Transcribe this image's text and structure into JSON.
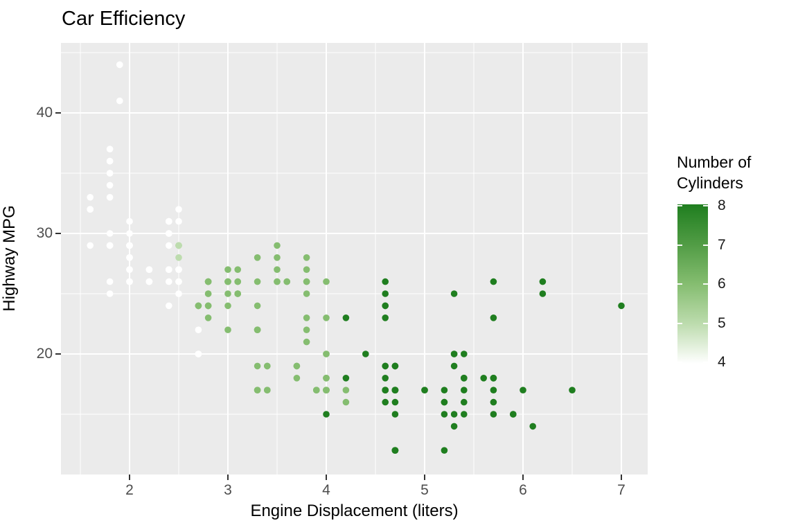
{
  "title": "Car Efficiency",
  "axes": {
    "x_label": "Engine Displacement (liters)",
    "y_label": "Highway MPG",
    "x_ticks": [
      2,
      3,
      4,
      5,
      6,
      7
    ],
    "y_ticks": [
      20,
      30,
      40
    ],
    "x_minor": [
      1.5,
      2.5,
      3.5,
      4.5,
      5.5,
      6.5
    ],
    "y_minor": [
      15,
      25,
      35,
      45
    ]
  },
  "legend": {
    "title_lines": [
      "Number of",
      "Cylinders"
    ],
    "ticks": [
      8,
      7,
      6,
      5,
      4
    ],
    "min_value": 4,
    "max_value": 8,
    "gradient_stops": [
      {
        "value": 4,
        "color": "#FFFFFF"
      },
      {
        "value": 5,
        "color": "#BDDCAE"
      },
      {
        "value": 6,
        "color": "#85BD70"
      },
      {
        "value": 7,
        "color": "#519C45"
      },
      {
        "value": 8,
        "color": "#1F7E1F"
      }
    ]
  },
  "colors": {
    "panel_bg": "#EBEBEB",
    "grid": "#FFFFFF",
    "axis_tick": "#333333",
    "tick_text": "#4D4D4D",
    "title_text": "#000000",
    "cyl_colors": {
      "4": "#FFFFFF",
      "5": "#BDDCAE",
      "6": "#85BD70",
      "7": "#519C45",
      "8": "#1F7E1F"
    }
  },
  "chart_data": {
    "type": "scatter",
    "title": "Car Efficiency",
    "xlabel": "Engine Displacement (liters)",
    "ylabel": "Highway MPG",
    "color_label": "Number of Cylinders",
    "xlim": [
      1.3,
      7.27
    ],
    "ylim": [
      10.4,
      45.6
    ],
    "x_ticks": [
      2,
      3,
      4,
      5,
      6,
      7
    ],
    "y_ticks": [
      20,
      30,
      40
    ],
    "legend_position": "right",
    "grid": true,
    "point_format": [
      "displacement_liters",
      "highway_mpg",
      "cylinders"
    ],
    "points": [
      [
        1.8,
        29,
        4
      ],
      [
        1.8,
        29,
        4
      ],
      [
        2,
        31,
        4
      ],
      [
        2,
        30,
        4
      ],
      [
        2.8,
        26,
        6
      ],
      [
        2.8,
        26,
        6
      ],
      [
        3.1,
        27,
        6
      ],
      [
        1.8,
        26,
        4
      ],
      [
        1.8,
        25,
        4
      ],
      [
        2,
        28,
        4
      ],
      [
        2,
        27,
        4
      ],
      [
        2.8,
        25,
        6
      ],
      [
        2.8,
        25,
        6
      ],
      [
        3.1,
        25,
        6
      ],
      [
        3.1,
        25,
        6
      ],
      [
        2.8,
        24,
        6
      ],
      [
        3.1,
        25,
        6
      ],
      [
        4.2,
        23,
        8
      ],
      [
        5.3,
        20,
        8
      ],
      [
        5.3,
        15,
        8
      ],
      [
        5.3,
        20,
        8
      ],
      [
        5.7,
        17,
        8
      ],
      [
        6,
        17,
        8
      ],
      [
        5.7,
        26,
        8
      ],
      [
        5.7,
        23,
        8
      ],
      [
        6.2,
        26,
        8
      ],
      [
        6.2,
        25,
        8
      ],
      [
        7,
        24,
        8
      ],
      [
        5.3,
        19,
        8
      ],
      [
        5.3,
        14,
        8
      ],
      [
        5.7,
        15,
        8
      ],
      [
        6.5,
        17,
        8
      ],
      [
        2.4,
        27,
        4
      ],
      [
        2.4,
        30,
        4
      ],
      [
        3.1,
        26,
        6
      ],
      [
        3.5,
        29,
        6
      ],
      [
        3.6,
        26,
        6
      ],
      [
        2.4,
        24,
        4
      ],
      [
        3,
        24,
        6
      ],
      [
        3.3,
        22,
        6
      ],
      [
        3.3,
        22,
        6
      ],
      [
        3.3,
        24,
        6
      ],
      [
        3.3,
        22,
        6
      ],
      [
        3.3,
        17,
        6
      ],
      [
        3.8,
        22,
        6
      ],
      [
        3.8,
        21,
        6
      ],
      [
        3.8,
        23,
        6
      ],
      [
        4,
        23,
        6
      ],
      [
        3.7,
        19,
        6
      ],
      [
        3.7,
        18,
        6
      ],
      [
        3.9,
        17,
        6
      ],
      [
        3.9,
        17,
        6
      ],
      [
        4.7,
        19,
        8
      ],
      [
        4.7,
        19,
        8
      ],
      [
        4.7,
        12,
        8
      ],
      [
        5.2,
        17,
        8
      ],
      [
        5.2,
        15,
        8
      ],
      [
        3.9,
        17,
        6
      ],
      [
        4.7,
        17,
        8
      ],
      [
        4.7,
        12,
        8
      ],
      [
        4.7,
        17,
        8
      ],
      [
        5.2,
        16,
        8
      ],
      [
        5.7,
        18,
        8
      ],
      [
        5.9,
        15,
        8
      ],
      [
        4.7,
        16,
        8
      ],
      [
        4.7,
        12,
        8
      ],
      [
        4.7,
        17,
        8
      ],
      [
        4.7,
        15,
        8
      ],
      [
        4.7,
        17,
        8
      ],
      [
        4.7,
        12,
        8
      ],
      [
        5.2,
        16,
        8
      ],
      [
        5.2,
        12,
        8
      ],
      [
        5.7,
        16,
        8
      ],
      [
        5.9,
        15,
        8
      ],
      [
        4.6,
        17,
        8
      ],
      [
        5.4,
        17,
        8
      ],
      [
        5.4,
        18,
        8
      ],
      [
        4,
        17,
        6
      ],
      [
        4,
        17,
        6
      ],
      [
        4,
        17,
        6
      ],
      [
        4,
        17,
        6
      ],
      [
        4.6,
        19,
        8
      ],
      [
        5,
        17,
        8
      ],
      [
        4.2,
        17,
        6
      ],
      [
        4.2,
        16,
        6
      ],
      [
        4.6,
        18,
        8
      ],
      [
        4.6,
        17,
        8
      ],
      [
        4.6,
        17,
        8
      ],
      [
        4.6,
        16,
        8
      ],
      [
        5.4,
        15,
        8
      ],
      [
        3.8,
        26,
        6
      ],
      [
        3.8,
        25,
        6
      ],
      [
        4,
        26,
        6
      ],
      [
        4.6,
        24,
        8
      ],
      [
        4.6,
        25,
        8
      ],
      [
        4.6,
        26,
        8
      ],
      [
        4.6,
        23,
        8
      ],
      [
        4.6,
        24,
        8
      ],
      [
        5.4,
        20,
        8
      ],
      [
        1.6,
        33,
        4
      ],
      [
        1.6,
        32,
        4
      ],
      [
        1.6,
        32,
        4
      ],
      [
        1.6,
        29,
        4
      ],
      [
        1.6,
        32,
        4
      ],
      [
        1.8,
        34,
        4
      ],
      [
        1.8,
        36,
        4
      ],
      [
        1.8,
        36,
        4
      ],
      [
        2,
        29,
        4
      ],
      [
        2.4,
        26,
        4
      ],
      [
        2.4,
        27,
        4
      ],
      [
        2.4,
        30,
        4
      ],
      [
        2.4,
        31,
        4
      ],
      [
        2.5,
        26,
        6
      ],
      [
        2.5,
        29,
        6
      ],
      [
        3.3,
        28,
        6
      ],
      [
        2,
        26,
        4
      ],
      [
        2,
        29,
        4
      ],
      [
        2,
        28,
        4
      ],
      [
        2,
        27,
        4
      ],
      [
        2.7,
        24,
        6
      ],
      [
        2.7,
        24,
        6
      ],
      [
        2.7,
        24,
        6
      ],
      [
        3,
        22,
        6
      ],
      [
        3.7,
        19,
        6
      ],
      [
        4,
        20,
        6
      ],
      [
        4.7,
        17,
        8
      ],
      [
        4.7,
        12,
        8
      ],
      [
        4.7,
        19,
        8
      ],
      [
        5.7,
        18,
        8
      ],
      [
        6.1,
        14,
        8
      ],
      [
        4,
        15,
        8
      ],
      [
        4.2,
        18,
        8
      ],
      [
        4.4,
        20,
        8
      ],
      [
        4.6,
        17,
        8
      ],
      [
        5.4,
        18,
        8
      ],
      [
        5.4,
        16,
        8
      ],
      [
        5.4,
        18,
        8
      ],
      [
        4,
        17,
        6
      ],
      [
        4,
        17,
        6
      ],
      [
        4.6,
        19,
        8
      ],
      [
        5,
        17,
        8
      ],
      [
        2.4,
        29,
        4
      ],
      [
        2.4,
        27,
        4
      ],
      [
        2.5,
        31,
        4
      ],
      [
        2.5,
        32,
        4
      ],
      [
        3.5,
        27,
        6
      ],
      [
        3.5,
        26,
        6
      ],
      [
        3,
        26,
        6
      ],
      [
        3,
        25,
        6
      ],
      [
        3.5,
        26,
        6
      ],
      [
        3.3,
        19,
        6
      ],
      [
        3.3,
        17,
        6
      ],
      [
        4,
        20,
        6
      ],
      [
        5.6,
        18,
        8
      ],
      [
        3.1,
        26,
        6
      ],
      [
        3.8,
        26,
        6
      ],
      [
        3.8,
        27,
        6
      ],
      [
        3.8,
        28,
        6
      ],
      [
        5.3,
        25,
        8
      ],
      [
        2.5,
        26,
        4
      ],
      [
        2.5,
        27,
        4
      ],
      [
        2.5,
        25,
        4
      ],
      [
        2.5,
        26,
        4
      ],
      [
        2.5,
        27,
        4
      ],
      [
        2.5,
        26,
        4
      ],
      [
        2.2,
        26,
        4
      ],
      [
        2.2,
        26,
        4
      ],
      [
        2.5,
        26,
        4
      ],
      [
        2.5,
        25,
        4
      ],
      [
        2.5,
        27,
        4
      ],
      [
        2.5,
        25,
        4
      ],
      [
        2.5,
        27,
        4
      ],
      [
        2.5,
        26,
        4
      ],
      [
        2.7,
        20,
        4
      ],
      [
        2.7,
        20,
        4
      ],
      [
        3.4,
        19,
        6
      ],
      [
        3.4,
        17,
        6
      ],
      [
        4,
        18,
        6
      ],
      [
        4.7,
        17,
        8
      ],
      [
        2.2,
        26,
        4
      ],
      [
        2.2,
        27,
        4
      ],
      [
        2.4,
        30,
        4
      ],
      [
        2.4,
        31,
        4
      ],
      [
        3,
        26,
        6
      ],
      [
        3,
        26,
        6
      ],
      [
        3.5,
        28,
        6
      ],
      [
        2.2,
        26,
        4
      ],
      [
        2.2,
        27,
        4
      ],
      [
        2.4,
        30,
        4
      ],
      [
        2.4,
        31,
        4
      ],
      [
        3,
        26,
        6
      ],
      [
        3,
        27,
        6
      ],
      [
        3.3,
        26,
        6
      ],
      [
        1.8,
        30,
        4
      ],
      [
        1.8,
        33,
        4
      ],
      [
        1.8,
        35,
        4
      ],
      [
        1.8,
        37,
        4
      ],
      [
        1.8,
        35,
        4
      ],
      [
        4.7,
        17,
        8
      ],
      [
        5.7,
        18,
        8
      ],
      [
        2.7,
        20,
        4
      ],
      [
        2.7,
        20,
        4
      ],
      [
        2.7,
        22,
        4
      ],
      [
        3.4,
        17,
        6
      ],
      [
        3.4,
        19,
        6
      ],
      [
        4,
        18,
        6
      ],
      [
        4,
        18,
        6
      ],
      [
        2,
        29,
        4
      ],
      [
        2,
        29,
        4
      ],
      [
        2,
        28,
        4
      ],
      [
        2,
        29,
        4
      ],
      [
        2.8,
        24,
        6
      ],
      [
        1.9,
        44,
        4
      ],
      [
        2,
        29,
        4
      ],
      [
        2,
        26,
        4
      ],
      [
        2,
        29,
        4
      ],
      [
        2,
        29,
        4
      ],
      [
        2.5,
        29,
        5
      ],
      [
        2.5,
        29,
        5
      ],
      [
        2.8,
        24,
        6
      ],
      [
        2.8,
        23,
        6
      ],
      [
        1.9,
        44,
        4
      ],
      [
        1.9,
        41,
        4
      ],
      [
        2,
        29,
        4
      ],
      [
        2,
        26,
        4
      ],
      [
        2.5,
        28,
        5
      ],
      [
        2.5,
        29,
        5
      ],
      [
        1.8,
        29,
        4
      ],
      [
        1.8,
        29,
        4
      ],
      [
        2,
        28,
        4
      ],
      [
        2,
        29,
        4
      ],
      [
        2.8,
        26,
        6
      ],
      [
        2.8,
        26,
        6
      ],
      [
        3.6,
        26,
        6
      ]
    ]
  }
}
